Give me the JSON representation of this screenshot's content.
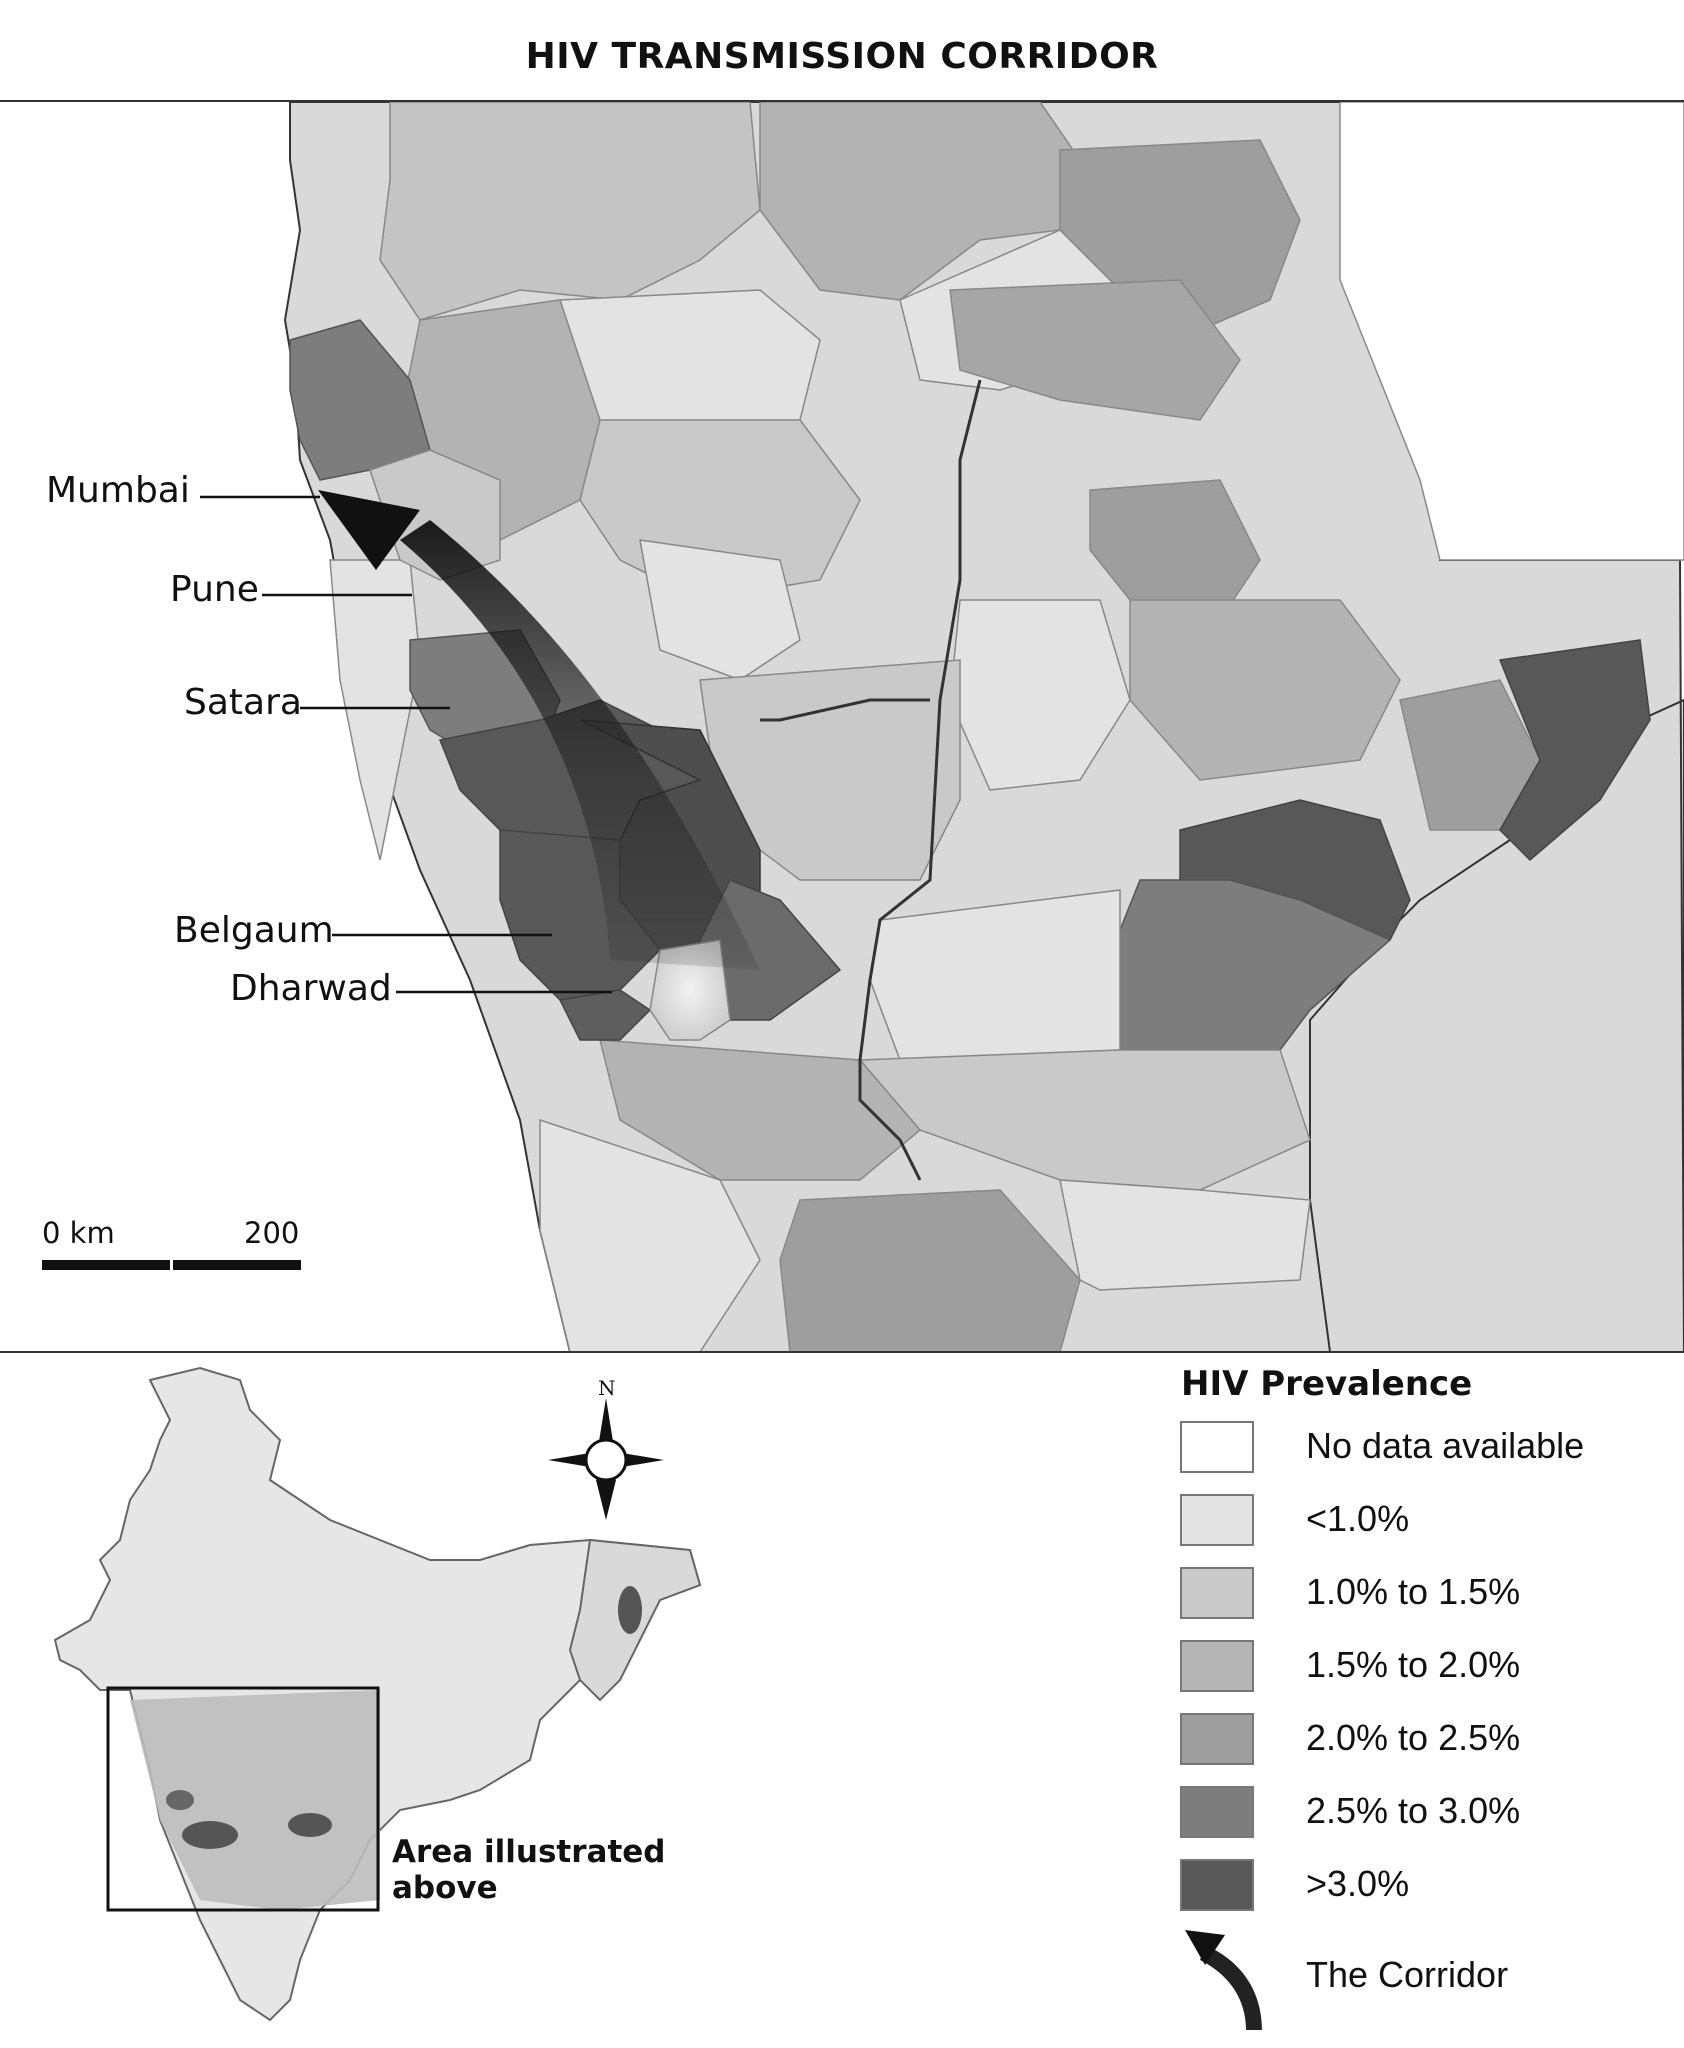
{
  "title": "HIV TRANSMISSION CORRIDOR",
  "cities": [
    {
      "name": "Mumbai"
    },
    {
      "name": "Pune"
    },
    {
      "name": "Satara"
    },
    {
      "name": "Belgaum"
    },
    {
      "name": "Dharwad"
    }
  ],
  "scale_bar": {
    "start_label": "0 km",
    "end_label": "200"
  },
  "compass": {
    "north_label": "N"
  },
  "legend": {
    "title": "HIV Prevalence",
    "items": [
      {
        "label": "No data available",
        "color": "#ffffff"
      },
      {
        "label": "<1.0%",
        "color": "#e3e3e3"
      },
      {
        "label": "1.0% to 1.5%",
        "color": "#c9c9c9"
      },
      {
        "label": "1.5% to 2.0%",
        "color": "#b5b5b5"
      },
      {
        "label": "2.0% to 2.5%",
        "color": "#9e9e9e"
      },
      {
        "label": "2.5% to 3.0%",
        "color": "#7d7d7d"
      },
      {
        "label": " >3.0%",
        "color": "#585858"
      }
    ],
    "corridor_label": "The Corridor"
  },
  "inset": {
    "label_line1": "Area illustrated",
    "label_line2": "above"
  }
}
